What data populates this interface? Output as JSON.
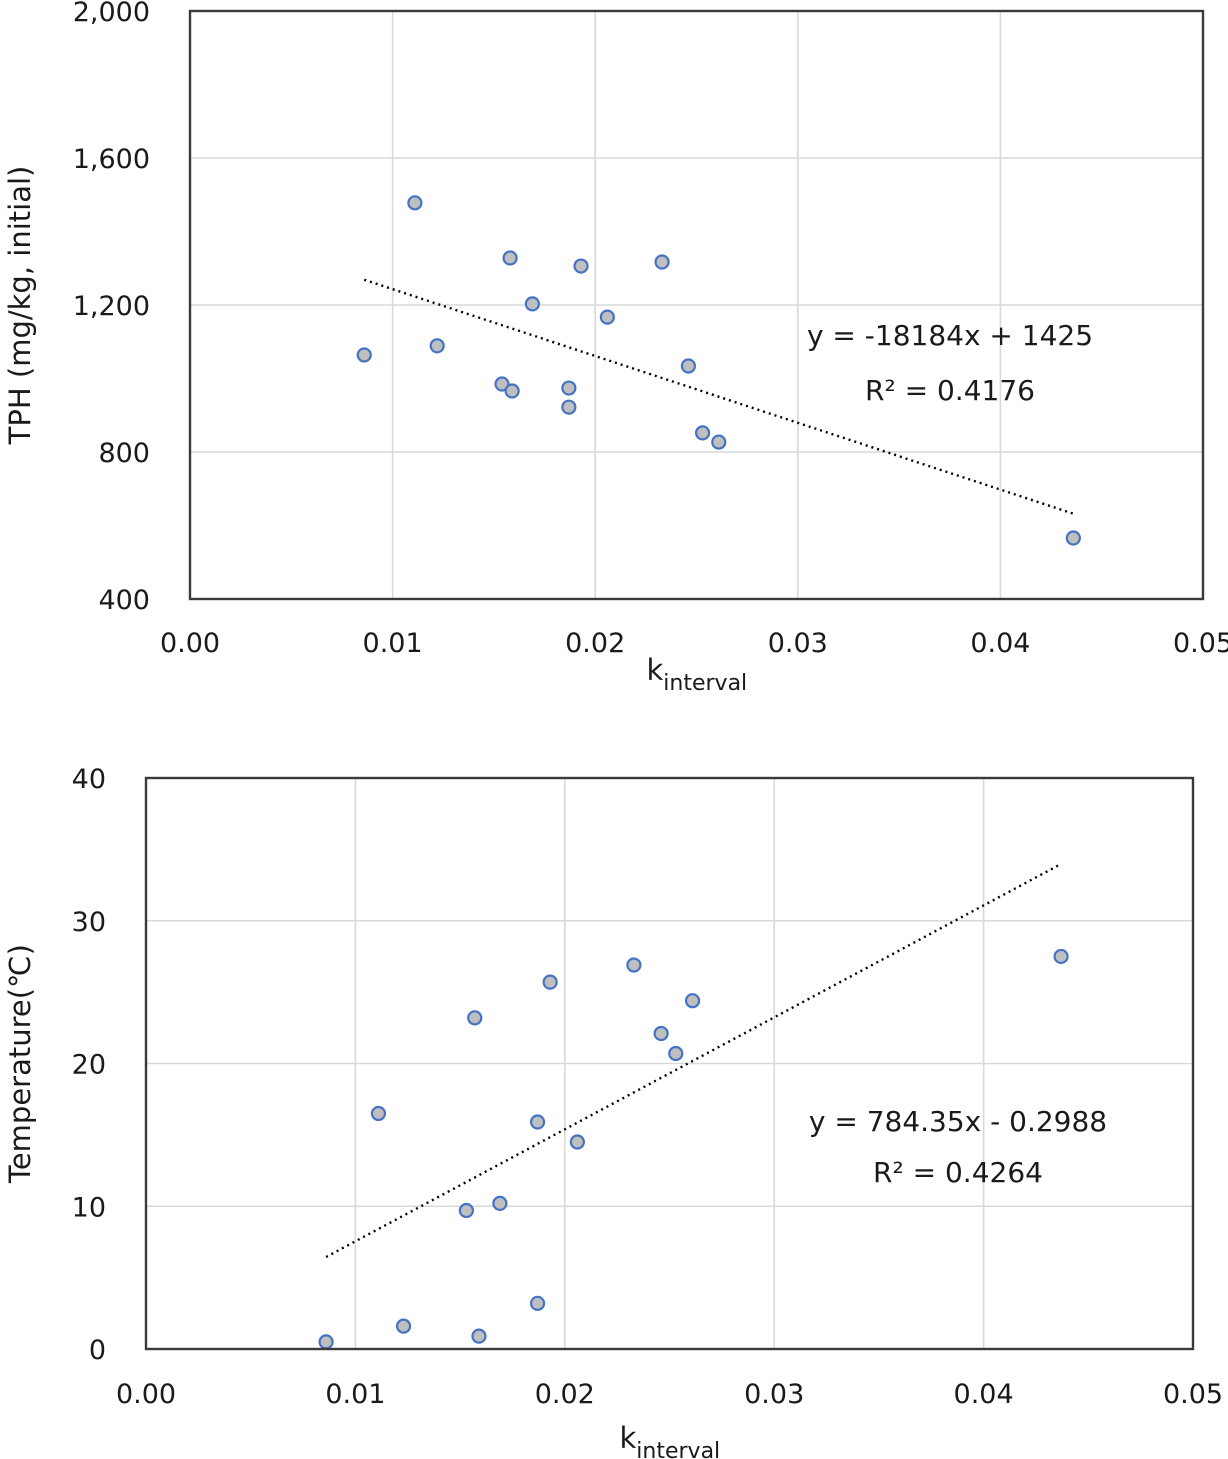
{
  "chart_data": [
    {
      "type": "scatter",
      "title": "",
      "xlabel": "k",
      "xlabel_subscript": "interval",
      "ylabel": "TPH (mg/kg, initial)",
      "xlim": [
        0.0,
        0.05
      ],
      "ylim": [
        400,
        2000
      ],
      "xticks": [
        0.0,
        0.01,
        0.02,
        0.03,
        0.04,
        0.05
      ],
      "xtick_labels": [
        "0.00",
        "0.01",
        "0.02",
        "0.03",
        "0.04",
        "0.05"
      ],
      "yticks": [
        400,
        800,
        1200,
        1600,
        2000
      ],
      "ytick_labels": [
        "400",
        "800",
        "1,200",
        "1,600",
        "2,000"
      ],
      "grid": true,
      "legend": "none",
      "series": [
        {
          "name": "TPH",
          "marker_fill": "#bfbfbf",
          "marker_edge": "#4472c4",
          "x": [
            0.0086,
            0.0111,
            0.0122,
            0.0154,
            0.0158,
            0.0159,
            0.0169,
            0.0187,
            0.0187,
            0.0193,
            0.0206,
            0.0233,
            0.0246,
            0.0253,
            0.0261,
            0.0436
          ],
          "y": [
            1064,
            1478,
            1089,
            985,
            1328,
            966,
            1203,
            974,
            922,
            1306,
            1167,
            1317,
            1034,
            852,
            827,
            566
          ]
        }
      ],
      "trendline": {
        "type": "linear",
        "slope": -18184,
        "intercept": 1425,
        "x_range": [
          0.0086,
          0.0436
        ],
        "style": "dotted",
        "color": "#000000"
      },
      "annotations": [
        "y = -18184x + 1425",
        "R² = 0.4176"
      ]
    },
    {
      "type": "scatter",
      "title": "",
      "xlabel": "k",
      "xlabel_subscript": "interval",
      "ylabel": "Temperature(℃)",
      "xlim": [
        0.0,
        0.05
      ],
      "ylim": [
        0,
        40
      ],
      "xticks": [
        0.0,
        0.01,
        0.02,
        0.03,
        0.04,
        0.05
      ],
      "xtick_labels": [
        "0.00",
        "0.01",
        "0.02",
        "0.03",
        "0.04",
        "0.05"
      ],
      "yticks": [
        0,
        10,
        20,
        30,
        40
      ],
      "ytick_labels": [
        "0",
        "10",
        "20",
        "30",
        "40"
      ],
      "grid": true,
      "legend": "none",
      "series": [
        {
          "name": "Temperature",
          "marker_fill": "#bfbfbf",
          "marker_edge": "#4472c4",
          "x": [
            0.0086,
            0.0111,
            0.0123,
            0.0153,
            0.0157,
            0.0159,
            0.0169,
            0.0187,
            0.0187,
            0.0193,
            0.0206,
            0.0233,
            0.0246,
            0.0253,
            0.0261,
            0.0437
          ],
          "y": [
            0.5,
            16.5,
            1.6,
            9.7,
            23.2,
            0.9,
            10.2,
            15.9,
            3.2,
            25.7,
            14.5,
            26.9,
            22.1,
            20.7,
            24.4,
            27.5
          ]
        }
      ],
      "trendline": {
        "type": "linear",
        "slope": 784.35,
        "intercept": -0.2988,
        "x_range": [
          0.0086,
          0.0436
        ],
        "style": "dotted",
        "color": "#000000"
      },
      "annotations": [
        "y = 784.35x - 0.2988",
        "R² = 0.4264"
      ]
    }
  ]
}
